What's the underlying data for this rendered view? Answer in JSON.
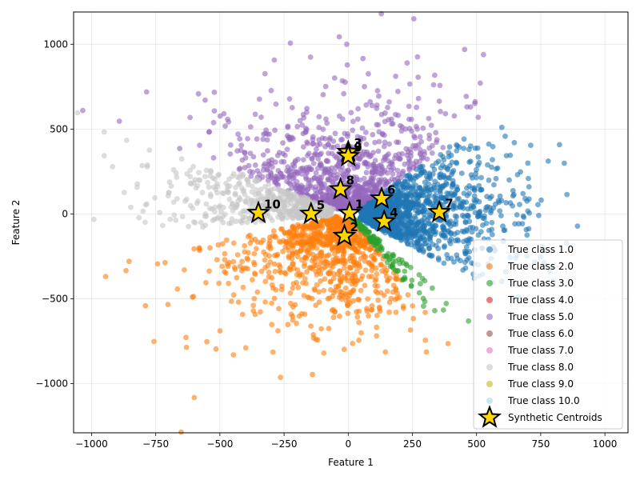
{
  "chart_data": {
    "type": "scatter",
    "title": "",
    "xlabel": "Feature 1",
    "ylabel": "Feature 2",
    "xlim": [
      -1070,
      1090
    ],
    "ylim": [
      -1290,
      1190
    ],
    "xticks": [
      -1000,
      -750,
      -500,
      -250,
      0,
      250,
      500,
      750,
      1000
    ],
    "yticks": [
      -1000,
      -500,
      0,
      500,
      1000
    ],
    "grid": true,
    "legend_position": "bottom-right",
    "classes": [
      {
        "name": "True class 1.0",
        "color": "#1f77b4",
        "angle_deg": [
          -38,
          45
        ],
        "r_range": [
          50,
          560
        ],
        "count": 1400
      },
      {
        "name": "True class 2.0",
        "color": "#ff7f0e",
        "angle_deg": [
          -162,
          -62
        ],
        "r_range": [
          40,
          620
        ],
        "count": 900
      },
      {
        "name": "True class 3.0",
        "color": "#2ca02c",
        "angle_deg": [
          -62,
          -52
        ],
        "r_range": [
          20,
          480
        ],
        "count": 140
      },
      {
        "name": "True class 4.0",
        "color": "#d62728",
        "angle_deg": [
          -30,
          -30
        ],
        "r_range": [
          0,
          0
        ],
        "count": 0
      },
      {
        "name": "True class 5.0",
        "color": "#9467bd",
        "angle_deg": [
          46,
          150
        ],
        "r_range": [
          40,
          640
        ],
        "count": 900
      },
      {
        "name": "True class 6.0",
        "color": "#8c564b",
        "angle_deg": [
          -30,
          -30
        ],
        "r_range": [
          0,
          0
        ],
        "count": 0
      },
      {
        "name": "True class 7.0",
        "color": "#e377c2",
        "angle_deg": [
          -30,
          -30
        ],
        "r_range": [
          0,
          0
        ],
        "count": 0
      },
      {
        "name": "True class 8.0",
        "color": "#c7c7c7",
        "angle_deg": [
          150,
          188
        ],
        "r_range": [
          60,
          640
        ],
        "count": 520
      },
      {
        "name": "True class 9.0",
        "color": "#bcbd22",
        "angle_deg": [
          -30,
          -30
        ],
        "r_range": [
          0,
          0
        ],
        "count": 0
      },
      {
        "name": "True class 10.0",
        "color": "#9edae5",
        "angle_deg": [
          -30,
          -30
        ],
        "r_range": [
          0,
          0
        ],
        "count": 0
      }
    ],
    "centroids": {
      "name": "Synthetic Centroids",
      "color": "#ffd700",
      "points": [
        {
          "label": "1",
          "x": 5,
          "y": 5
        },
        {
          "label": "2",
          "x": -15,
          "y": -130
        },
        {
          "label": "3",
          "x": 0,
          "y": 365
        },
        {
          "label": "4",
          "x": 140,
          "y": -45
        },
        {
          "label": "5",
          "x": -145,
          "y": 0
        },
        {
          "label": "6",
          "x": 130,
          "y": 90
        },
        {
          "label": "7",
          "x": 355,
          "y": 10
        },
        {
          "label": "8",
          "x": -30,
          "y": 145
        },
        {
          "label": "9",
          "x": 0,
          "y": 340
        },
        {
          "label": "10",
          "x": -350,
          "y": 5
        }
      ]
    }
  }
}
